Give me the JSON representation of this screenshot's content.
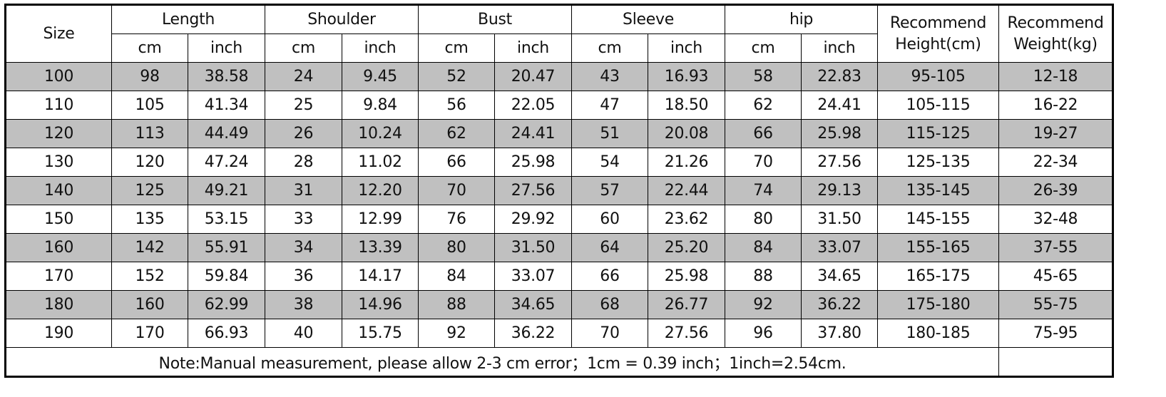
{
  "header": {
    "size": "Size",
    "groups": [
      "Length",
      "Shoulder",
      "Bust",
      "Sleeve",
      "hip"
    ],
    "unit_cm": "cm",
    "unit_inch": "inch",
    "rec_height": [
      "Recommend",
      "Height(cm)"
    ],
    "rec_weight": [
      "Recommend",
      "Weight(kg)"
    ]
  },
  "row_shading": {
    "gray": "#c0c0c0",
    "white": "#ffffff"
  },
  "rows": [
    [
      "100",
      "98",
      "38.58",
      "24",
      "9.45",
      "52",
      "20.47",
      "43",
      "16.93",
      "58",
      "22.83",
      "95-105",
      "12-18"
    ],
    [
      "110",
      "105",
      "41.34",
      "25",
      "9.84",
      "56",
      "22.05",
      "47",
      "18.50",
      "62",
      "24.41",
      "105-115",
      "16-22"
    ],
    [
      "120",
      "113",
      "44.49",
      "26",
      "10.24",
      "62",
      "24.41",
      "51",
      "20.08",
      "66",
      "25.98",
      "115-125",
      "19-27"
    ],
    [
      "130",
      "120",
      "47.24",
      "28",
      "11.02",
      "66",
      "25.98",
      "54",
      "21.26",
      "70",
      "27.56",
      "125-135",
      "22-34"
    ],
    [
      "140",
      "125",
      "49.21",
      "31",
      "12.20",
      "70",
      "27.56",
      "57",
      "22.44",
      "74",
      "29.13",
      "135-145",
      "26-39"
    ],
    [
      "150",
      "135",
      "53.15",
      "33",
      "12.99",
      "76",
      "29.92",
      "60",
      "23.62",
      "80",
      "31.50",
      "145-155",
      "32-48"
    ],
    [
      "160",
      "142",
      "55.91",
      "34",
      "13.39",
      "80",
      "31.50",
      "64",
      "25.20",
      "84",
      "33.07",
      "155-165",
      "37-55"
    ],
    [
      "170",
      "152",
      "59.84",
      "36",
      "14.17",
      "84",
      "33.07",
      "66",
      "25.98",
      "88",
      "34.65",
      "165-175",
      "45-65"
    ],
    [
      "180",
      "160",
      "62.99",
      "38",
      "14.96",
      "88",
      "34.65",
      "68",
      "26.77",
      "92",
      "36.22",
      "175-180",
      "55-75"
    ],
    [
      "190",
      "170",
      "66.93",
      "40",
      "15.75",
      "92",
      "36.22",
      "70",
      "27.56",
      "96",
      "37.80",
      "180-185",
      "75-95"
    ]
  ],
  "note": "Note:Manual measurement, please allow 2-3 cm error；1cm = 0.39 inch；1inch=2.54cm."
}
